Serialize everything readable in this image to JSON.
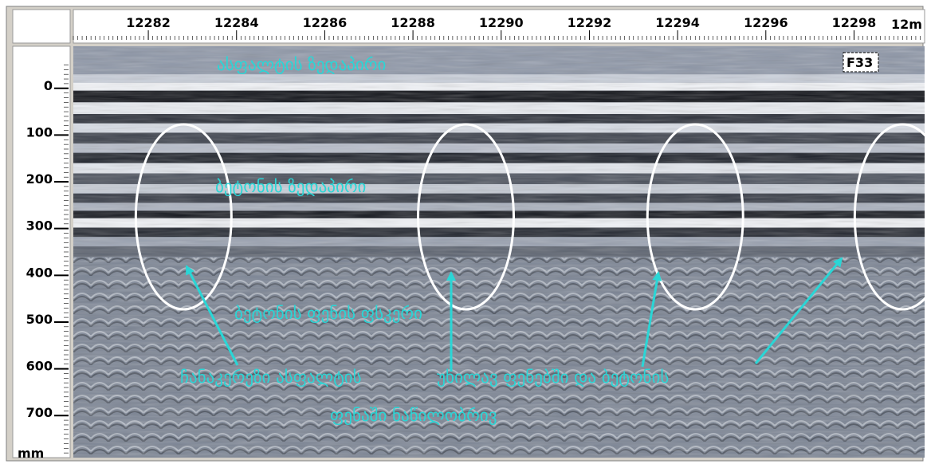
{
  "chart_data": {
    "type": "heatmap",
    "x_axis": {
      "ticks": [
        "12282",
        "12284",
        "12286",
        "12288",
        "12290",
        "12292",
        "12294",
        "12296",
        "12298"
      ],
      "unit_label": "12m",
      "range": [
        12280.3,
        12299.6
      ]
    },
    "y_axis": {
      "ticks": [
        "0",
        "100",
        "200",
        "300",
        "400",
        "500",
        "600",
        "700"
      ],
      "unit_label": "mm",
      "range": [
        -90,
        790
      ]
    },
    "marker_label": "F33",
    "anomalies": [
      {
        "x": 12282.8,
        "y": 275
      },
      {
        "x": 12289.2,
        "y": 275
      },
      {
        "x": 12294.4,
        "y": 275
      },
      {
        "x": 12299.1,
        "y": 275
      }
    ],
    "annotations": {
      "asphalt_surface": "ასფალტის ზედაპირი",
      "concrete_surface": "ბეტონის ზედაპირი",
      "concrete_bottom": "ბეტონის ფენის ფსკერი",
      "inclusions_line1": "ჩანაკერეზი ასფალტის",
      "inclusions_line1b": "უხილავ ფენებში და ბეტონის",
      "inclusions_line2": "ფენაში ნაწილობრივ"
    },
    "colors": {
      "scan_dark": "#16181f",
      "scan_mid": "#8d97a8",
      "scan_light": "#f4f6fa",
      "annotation": "#2ad6d6",
      "ellipse": "#ffffff"
    }
  }
}
